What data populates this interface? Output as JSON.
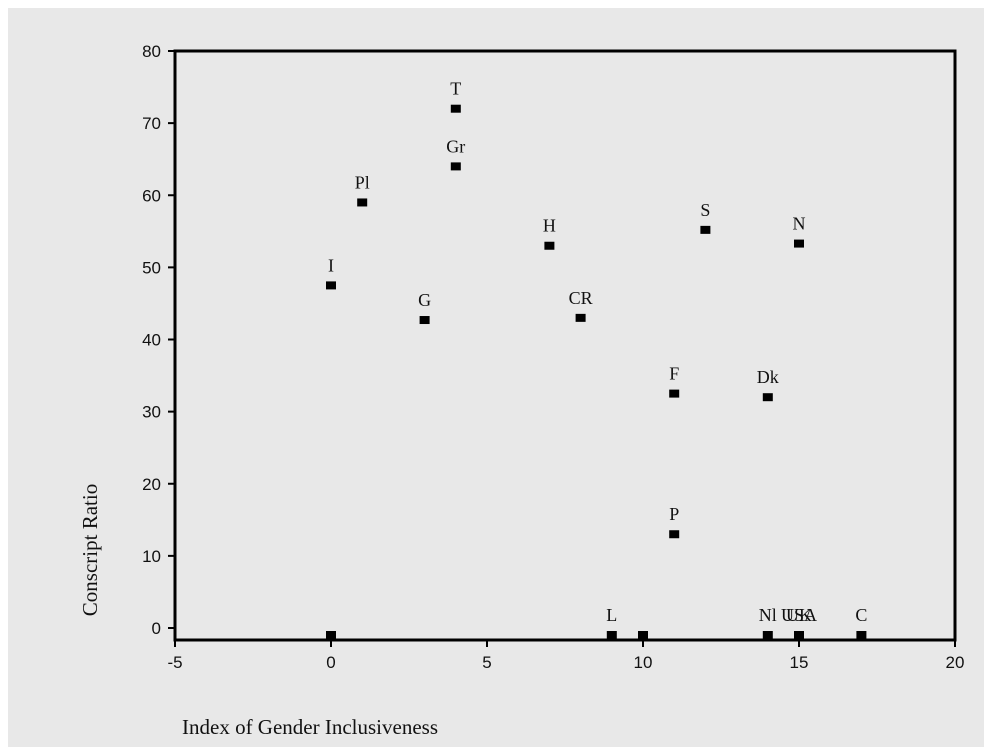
{
  "chart_data": {
    "type": "scatter",
    "title": "",
    "xlabel": "Index of Gender Inclusiveness",
    "ylabel": "Conscript Ratio",
    "xlim": [
      -5,
      20
    ],
    "ylim": [
      0,
      80
    ],
    "xticks": [
      -5,
      0,
      5,
      10,
      15,
      20
    ],
    "yticks": [
      0,
      10,
      20,
      30,
      40,
      50,
      60,
      70,
      80
    ],
    "grid": false,
    "legend": "none",
    "marker_color": "#000000",
    "points": [
      {
        "label": "T",
        "x": 4,
        "y": 72
      },
      {
        "label": "Gr",
        "x": 4,
        "y": 64
      },
      {
        "label": "Pl",
        "x": 1,
        "y": 59
      },
      {
        "label": "I",
        "x": 0,
        "y": 47.5
      },
      {
        "label": "G",
        "x": 3,
        "y": 42.7
      },
      {
        "label": "H",
        "x": 7,
        "y": 53
      },
      {
        "label": "CR",
        "x": 8,
        "y": 43
      },
      {
        "label": "S",
        "x": 12,
        "y": 55.2
      },
      {
        "label": "N",
        "x": 15,
        "y": 53.3
      },
      {
        "label": "F",
        "x": 11,
        "y": 32.5
      },
      {
        "label": "Dk",
        "x": 14,
        "y": 32
      },
      {
        "label": "P",
        "x": 11,
        "y": 13
      },
      {
        "label": "",
        "x": 0,
        "y": -1.5
      },
      {
        "label": "L",
        "x": 9,
        "y": -1.5
      },
      {
        "label": "",
        "x": 10,
        "y": -1.5
      },
      {
        "label": "Nl",
        "x": 14,
        "y": -1.5
      },
      {
        "label": "UK",
        "x": 15,
        "y": -1.5
      },
      {
        "label": "USA",
        "x": 15,
        "y": -1.5
      },
      {
        "label": "C",
        "x": 17,
        "y": -1.5
      }
    ]
  }
}
